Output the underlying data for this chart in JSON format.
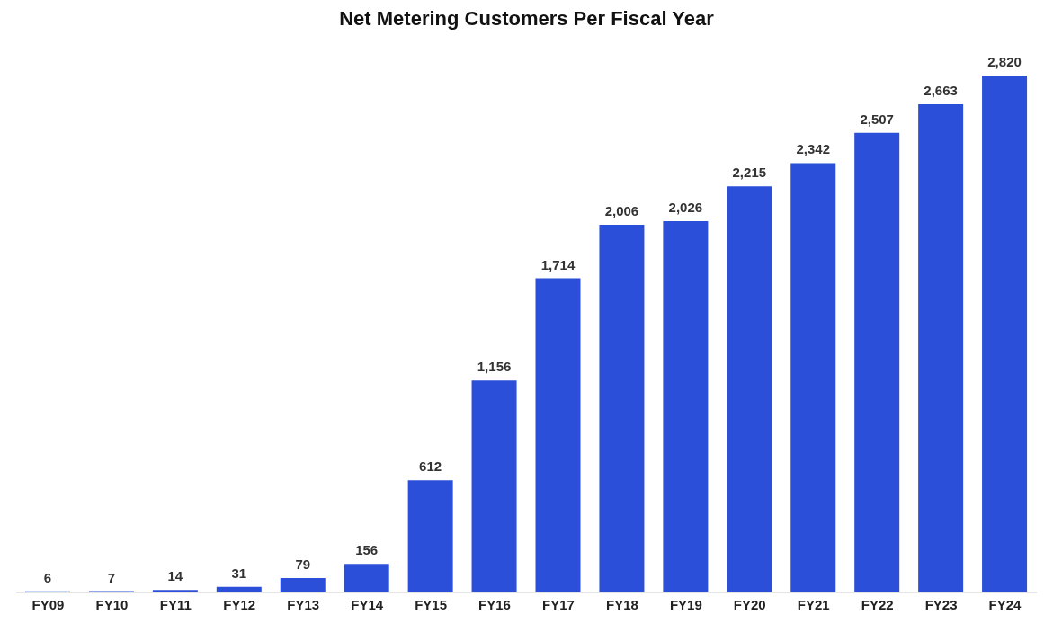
{
  "chart_data": {
    "type": "bar",
    "title": "Net Metering Customers Per Fiscal Year",
    "categories": [
      "FY09",
      "FY10",
      "FY11",
      "FY12",
      "FY13",
      "FY14",
      "FY15",
      "FY16",
      "FY17",
      "FY18",
      "FY19",
      "FY20",
      "FY21",
      "FY22",
      "FY23",
      "FY24"
    ],
    "values": [
      6,
      7,
      14,
      31,
      79,
      156,
      612,
      1156,
      1714,
      2006,
      2026,
      2215,
      2342,
      2507,
      2663,
      2820
    ],
    "value_labels": [
      "6",
      "7",
      "14",
      "31",
      "79",
      "156",
      "612",
      "1,156",
      "1,714",
      "2,006",
      "2,026",
      "2,215",
      "2,342",
      "2,507",
      "2,663",
      "2,820"
    ],
    "color": "#2b4fd8"
  }
}
